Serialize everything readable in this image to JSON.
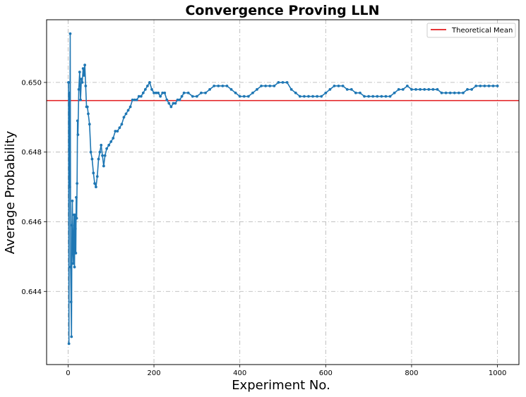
{
  "chart_data": {
    "type": "line",
    "title": "Convergence Proving LLN",
    "xlabel": "Experiment No.",
    "ylabel": "Average Probability",
    "xlim": [
      -50,
      1050
    ],
    "ylim": [
      0.6419,
      0.6518
    ],
    "xticks": [
      0,
      200,
      400,
      600,
      800,
      1000
    ],
    "yticks": [
      0.644,
      0.646,
      0.648,
      0.65
    ],
    "xtick_labels": [
      "0",
      "200",
      "400",
      "600",
      "800",
      "1000"
    ],
    "ytick_labels": [
      "0.644",
      "0.646",
      "0.648",
      "0.650"
    ],
    "grid": true,
    "grid_style": "dashdot",
    "legend_position": "top-right",
    "series": [
      {
        "color": "#1f77b4",
        "marker": "circle",
        "x": [
          1,
          2,
          3,
          4,
          5,
          6,
          7,
          8,
          9,
          10,
          11,
          12,
          13,
          14,
          15,
          16,
          17,
          18,
          19,
          20,
          21,
          22,
          23,
          25,
          27,
          29,
          31,
          33,
          35,
          37,
          39,
          41,
          43,
          45,
          47,
          50,
          53,
          56,
          59,
          62,
          65,
          68,
          71,
          74,
          77,
          80,
          83,
          86,
          90,
          95,
          100,
          105,
          110,
          115,
          120,
          125,
          130,
          135,
          140,
          145,
          150,
          155,
          160,
          165,
          170,
          175,
          180,
          185,
          190,
          195,
          200,
          205,
          210,
          215,
          220,
          225,
          230,
          235,
          240,
          245,
          250,
          255,
          260,
          265,
          270,
          280,
          290,
          300,
          310,
          320,
          330,
          340,
          350,
          360,
          370,
          380,
          390,
          400,
          410,
          420,
          430,
          440,
          450,
          460,
          470,
          480,
          490,
          500,
          510,
          520,
          530,
          540,
          550,
          560,
          570,
          580,
          590,
          600,
          610,
          620,
          630,
          640,
          650,
          660,
          670,
          680,
          690,
          700,
          710,
          720,
          730,
          740,
          750,
          760,
          770,
          780,
          790,
          800,
          810,
          820,
          830,
          840,
          850,
          860,
          870,
          880,
          890,
          900,
          910,
          920,
          930,
          940,
          950,
          960,
          970,
          980,
          990,
          1000
        ],
        "y": [
          0.65,
          0.6425,
          0.6497,
          0.647,
          0.6514,
          0.6447,
          0.6437,
          0.6427,
          0.6459,
          0.6466,
          0.6452,
          0.6448,
          0.6456,
          0.6462,
          0.6447,
          0.6462,
          0.6458,
          0.6451,
          0.6467,
          0.6461,
          0.6471,
          0.6489,
          0.6485,
          0.6498,
          0.6503,
          0.6495,
          0.6501,
          0.65,
          0.6504,
          0.6502,
          0.6505,
          0.6499,
          0.6493,
          0.6493,
          0.6491,
          0.6488,
          0.648,
          0.6478,
          0.6474,
          0.6471,
          0.647,
          0.6473,
          0.6478,
          0.648,
          0.6482,
          0.6479,
          0.6476,
          0.6479,
          0.6481,
          0.6482,
          0.6483,
          0.6484,
          0.6486,
          0.6486,
          0.6487,
          0.6488,
          0.649,
          0.6491,
          0.6492,
          0.6493,
          0.6495,
          0.6495,
          0.6495,
          0.6496,
          0.6496,
          0.6497,
          0.6498,
          0.6499,
          0.65,
          0.6498,
          0.6497,
          0.6497,
          0.6497,
          0.6496,
          0.6497,
          0.6497,
          0.6495,
          0.6494,
          0.6493,
          0.6494,
          0.6494,
          0.6495,
          0.6495,
          0.6496,
          0.6497,
          0.6497,
          0.6496,
          0.6496,
          0.6497,
          0.6497,
          0.6498,
          0.6499,
          0.6499,
          0.6499,
          0.6499,
          0.6498,
          0.6497,
          0.6496,
          0.6496,
          0.6496,
          0.6497,
          0.6498,
          0.6499,
          0.6499,
          0.6499,
          0.6499,
          0.65,
          0.65,
          0.65,
          0.6498,
          0.6497,
          0.6496,
          0.6496,
          0.6496,
          0.6496,
          0.6496,
          0.6496,
          0.6497,
          0.6498,
          0.6499,
          0.6499,
          0.6499,
          0.6498,
          0.6498,
          0.6497,
          0.6497,
          0.6496,
          0.6496,
          0.6496,
          0.6496,
          0.6496,
          0.6496,
          0.6496,
          0.6497,
          0.6498,
          0.6498,
          0.6499,
          0.6498,
          0.6498,
          0.6498,
          0.6498,
          0.6498,
          0.6498,
          0.6498,
          0.6497,
          0.6497,
          0.6497,
          0.6497,
          0.6497,
          0.6497,
          0.6498,
          0.6498,
          0.6499,
          0.6499,
          0.6499,
          0.6499,
          0.6499,
          0.6499
        ]
      }
    ],
    "hlines": [
      {
        "name": "Theoretical Mean",
        "y": 0.64948,
        "color": "#e31a1c"
      }
    ]
  }
}
